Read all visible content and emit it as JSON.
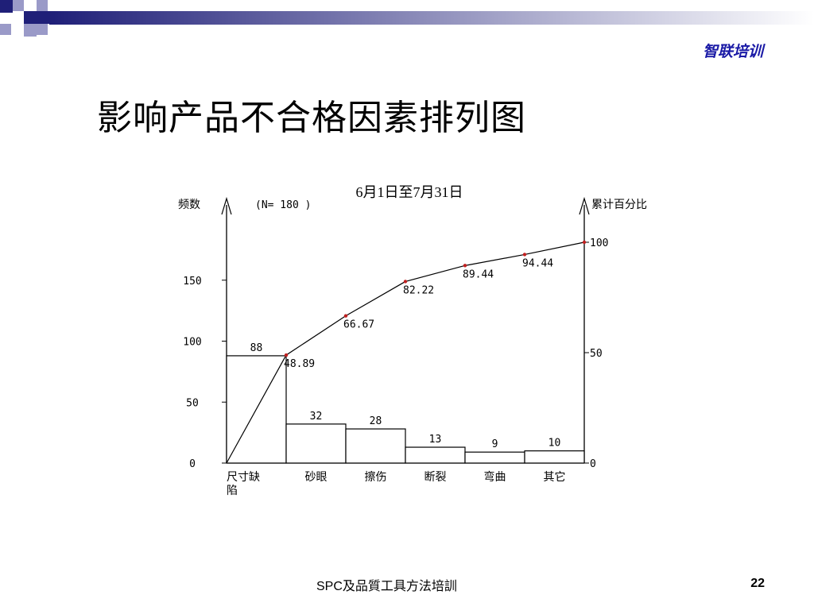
{
  "brand": "智联培训",
  "slide_title": "影响产品不合格因素排列图",
  "footer": "SPC及品質工具方法培訓",
  "page_number": "22",
  "colors": {
    "deco_dark": "#1f1f78",
    "deco_light": "#9a9ac8",
    "brand_text": "#1a1aa6",
    "axis": "#000000",
    "point_marker": "#c02020"
  },
  "chart_data": {
    "type": "bar",
    "title": "6月1日至7月31日",
    "note": "(N= 180 )",
    "ylabel_left": "频数",
    "ylabel_right": "累计百分比",
    "categories": [
      {
        "line1": "尺寸缺",
        "line2": "陷"
      },
      {
        "line1": "砂眼",
        "line2": ""
      },
      {
        "line1": "擦伤",
        "line2": ""
      },
      {
        "line1": "断裂",
        "line2": ""
      },
      {
        "line1": "弯曲",
        "line2": ""
      },
      {
        "line1": "其它",
        "line2": ""
      }
    ],
    "values": [
      88,
      32,
      28,
      13,
      9,
      10
    ],
    "value_labels": [
      "88",
      "32",
      "28",
      "13",
      "9",
      "10"
    ],
    "cumulative_percent": [
      48.89,
      66.67,
      82.22,
      89.44,
      94.44,
      100
    ],
    "cumulative_labels": [
      "48.89",
      "66.67",
      "82.22",
      "89.44",
      "94.44",
      ""
    ],
    "ylim_left": [
      0,
      180
    ],
    "yticks_left": [
      0,
      50,
      100,
      150
    ],
    "ylim_right": [
      0,
      100
    ],
    "yticks_right": [
      0,
      50,
      100
    ]
  }
}
